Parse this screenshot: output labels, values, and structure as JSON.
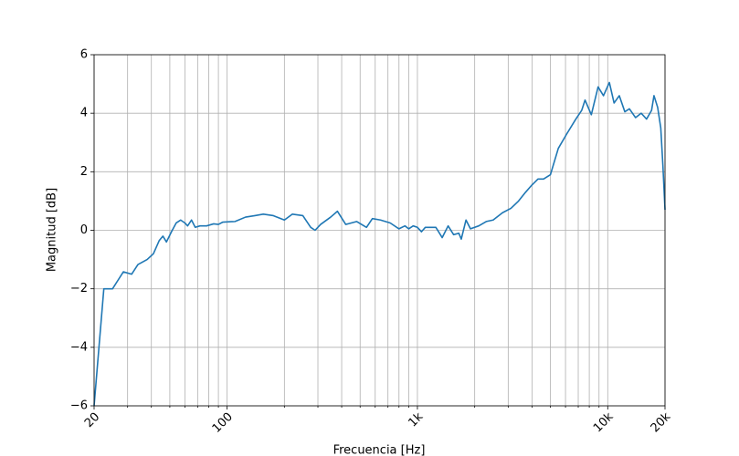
{
  "chart_data": {
    "type": "line",
    "xlabel": "Frecuencia [Hz]",
    "ylabel": "Magnitud [dB]",
    "xscale": "log",
    "grid": true,
    "xlim": [
      20,
      20000
    ],
    "ylim": [
      -6,
      6
    ],
    "xticks": [
      20,
      100,
      {
        "value": 1000,
        "label": "1k"
      },
      {
        "value": 10000,
        "label": "10k"
      },
      {
        "value": 20000,
        "label": "20k"
      }
    ],
    "xminorticks": [
      30,
      40,
      50,
      60,
      70,
      80,
      90,
      200,
      300,
      400,
      500,
      600,
      700,
      800,
      900,
      2000,
      3000,
      4000,
      5000,
      6000,
      7000,
      8000,
      9000
    ],
    "yticks": [
      {
        "value": -6,
        "label": "−6"
      },
      {
        "value": -4,
        "label": "−4"
      },
      {
        "value": -2,
        "label": "−2"
      },
      0,
      2,
      4,
      6
    ],
    "x": [
      20,
      22.5,
      25,
      28.5,
      31.5,
      34,
      38,
      41,
      44,
      46,
      48,
      51,
      54,
      57,
      60,
      62,
      65,
      68,
      72,
      78,
      85,
      90,
      95,
      110,
      125,
      140,
      155,
      175,
      200,
      220,
      250,
      275,
      290,
      310,
      350,
      380,
      420,
      480,
      540,
      580,
      640,
      720,
      800,
      860,
      900,
      950,
      1000,
      1050,
      1100,
      1250,
      1350,
      1450,
      1550,
      1650,
      1700,
      1800,
      1900,
      2100,
      2300,
      2500,
      2800,
      3100,
      3400,
      3700,
      4000,
      4300,
      4600,
      5000,
      5500,
      6100,
      6800,
      7300,
      7600,
      8200,
      8900,
      9500,
      10200,
      10800,
      11500,
      12300,
      13000,
      14000,
      15000,
      16000,
      17000,
      17500,
      18300,
      19000,
      19500,
      20000
    ],
    "series": [
      {
        "color": "#1f77b4",
        "values": [
          -6,
          -2.0,
          -2.0,
          -1.42,
          -1.5,
          -1.17,
          -1.0,
          -0.8,
          -0.35,
          -0.2,
          -0.4,
          -0.05,
          0.25,
          0.35,
          0.25,
          0.15,
          0.35,
          0.1,
          0.15,
          0.15,
          0.22,
          0.2,
          0.28,
          0.3,
          0.45,
          0.5,
          0.55,
          0.5,
          0.35,
          0.55,
          0.5,
          0.1,
          0.0,
          0.2,
          0.45,
          0.65,
          0.2,
          0.3,
          0.1,
          0.4,
          0.35,
          0.25,
          0.05,
          0.15,
          0.05,
          0.15,
          0.1,
          -0.05,
          0.1,
          0.1,
          -0.25,
          0.15,
          -0.15,
          -0.1,
          -0.3,
          0.35,
          0.05,
          0.15,
          0.3,
          0.35,
          0.6,
          0.75,
          1.0,
          1.3,
          1.55,
          1.75,
          1.75,
          1.9,
          2.8,
          3.3,
          3.8,
          4.1,
          4.45,
          3.95,
          4.9,
          4.6,
          5.05,
          4.35,
          4.6,
          4.05,
          4.15,
          3.85,
          4.0,
          3.8,
          4.1,
          4.6,
          4.2,
          3.5,
          2.2,
          0.7
        ]
      }
    ]
  }
}
